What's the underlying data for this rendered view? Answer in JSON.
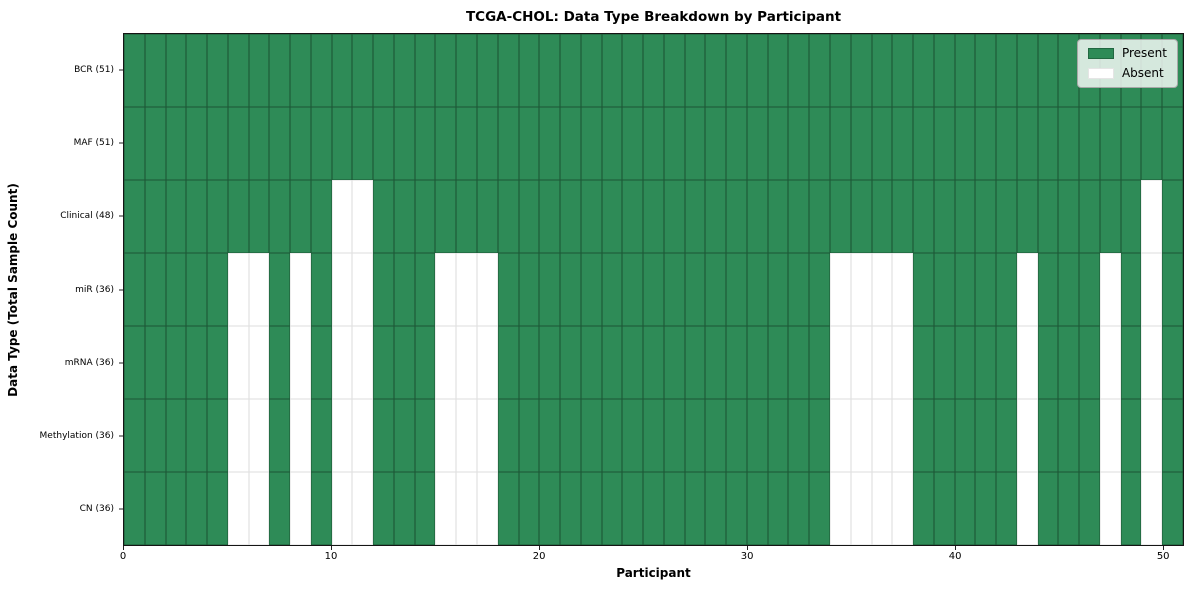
{
  "chart_data": {
    "type": "heatmap",
    "title": "TCGA-CHOL: Data Type Breakdown by Participant",
    "xlabel": "Participant",
    "ylabel": "Data Type (Total Sample Count)",
    "n_participants": 51,
    "x_range": [
      0,
      51
    ],
    "x_ticks": [
      0,
      10,
      20,
      30,
      40,
      50
    ],
    "grid": true,
    "legend_position": "upper right",
    "colors": {
      "present": "#2e8b57",
      "absent": "#ffffff"
    },
    "legend_items": [
      {
        "label": "Present",
        "color": "#2e8b57"
      },
      {
        "label": "Absent",
        "color": "#ffffff"
      }
    ],
    "rows": [
      {
        "label": "BCR (51)",
        "absent_participants": []
      },
      {
        "label": "MAF (51)",
        "absent_participants": []
      },
      {
        "label": "Clinical (48)",
        "absent_participants": [
          10,
          11,
          49
        ]
      },
      {
        "label": "miR (36)",
        "absent_participants": [
          5,
          6,
          8,
          10,
          11,
          15,
          16,
          17,
          34,
          35,
          36,
          37,
          43,
          47,
          49
        ]
      },
      {
        "label": "mRNA (36)",
        "absent_participants": [
          5,
          6,
          8,
          10,
          11,
          15,
          16,
          17,
          34,
          35,
          36,
          37,
          43,
          47,
          49
        ]
      },
      {
        "label": "Methylation (36)",
        "absent_participants": [
          5,
          6,
          8,
          10,
          11,
          15,
          16,
          17,
          34,
          35,
          36,
          37,
          43,
          47,
          49
        ]
      },
      {
        "label": "CN (36)",
        "absent_participants": [
          5,
          6,
          8,
          10,
          11,
          15,
          16,
          17,
          34,
          35,
          36,
          37,
          43,
          47,
          49
        ]
      }
    ]
  }
}
